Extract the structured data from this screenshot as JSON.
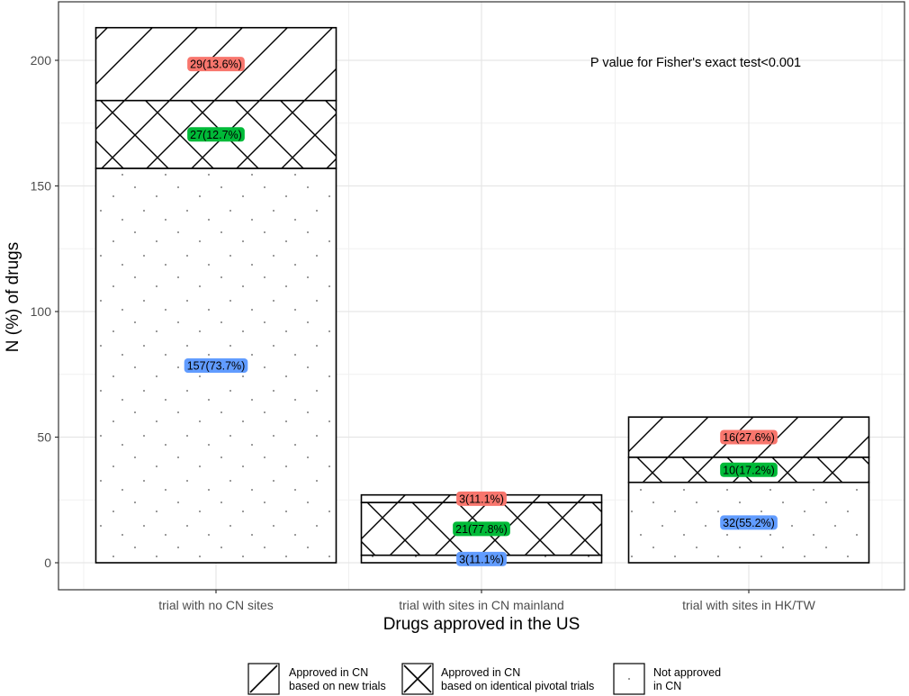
{
  "chart_data": {
    "type": "bar",
    "stacked": true,
    "xlabel": "Drugs approved in the US",
    "ylabel": "N (%) of drugs",
    "ylim": [
      0,
      220
    ],
    "yticks": [
      0,
      50,
      100,
      150,
      200
    ],
    "grid": true,
    "annotation": "P value for Fisher's exact test<0.001",
    "categories": [
      "trial with no CN sites",
      "trial with sites in CN mainland",
      "trial with sites in HK/TW"
    ],
    "series": [
      {
        "key": "not_approved",
        "name": "Not approved\nin CN",
        "pattern": "dots",
        "label_color": "#619cff",
        "values": [
          157,
          3,
          32
        ],
        "labels": [
          "157(73.7%)",
          "3(11.1%)",
          "32(55.2%)"
        ]
      },
      {
        "key": "identical",
        "name": "Approved in CN\nbased on identical pivotal trials",
        "pattern": "crosshatch",
        "label_color": "#00ba38",
        "values": [
          27,
          21,
          10
        ],
        "labels": [
          "27(12.7%)",
          "21(77.8%)",
          "10(17.2%)"
        ]
      },
      {
        "key": "new_trials",
        "name": "Approved in CN\nbased on new trials",
        "pattern": "stripe",
        "label_color": "#f8766d",
        "values": [
          29,
          3,
          16
        ],
        "labels": [
          "29(13.6%)",
          "3(11.1%)",
          "16(27.6%)"
        ]
      }
    ],
    "legend": {
      "position": "bottom",
      "order": [
        "new_trials",
        "identical",
        "not_approved"
      ]
    }
  }
}
